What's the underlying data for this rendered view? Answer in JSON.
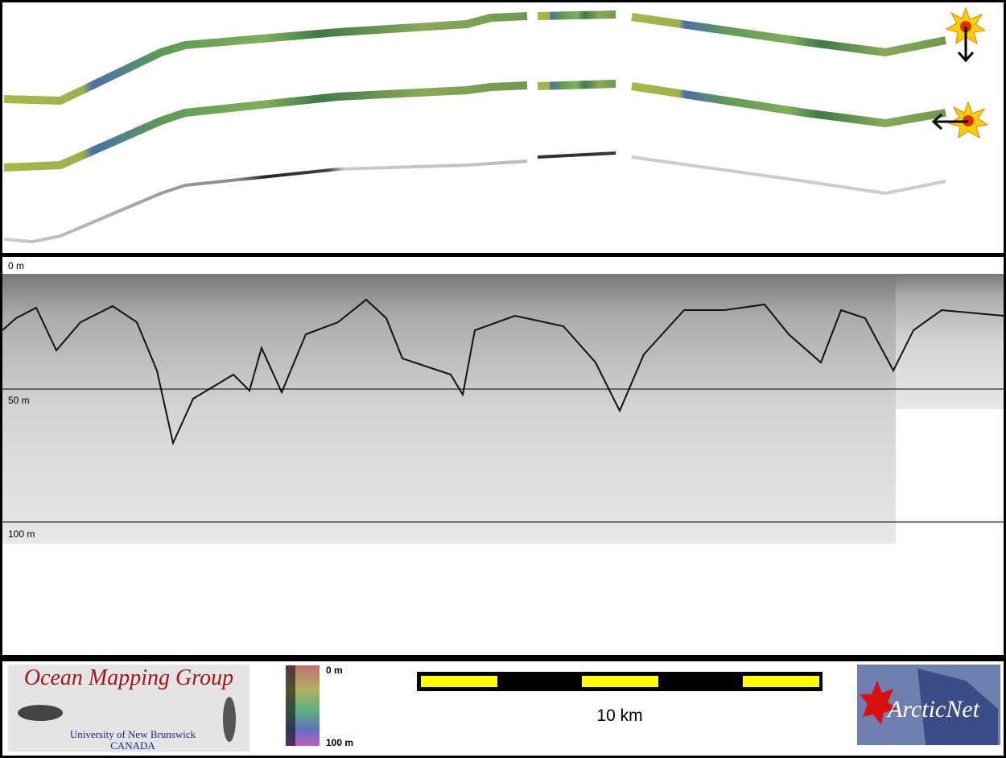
{
  "depth_axis": {
    "labels": [
      "0 m",
      "50 m",
      "100 m"
    ]
  },
  "logo": {
    "title": "Ocean Mapping Group",
    "subtitle": "University of New Brunswick",
    "country": "CANADA"
  },
  "colorbar": {
    "top": "0 m",
    "bottom": "100 m"
  },
  "scale_bar": {
    "label": "10 km"
  },
  "partner_logo": {
    "text": "ArcticNet"
  }
}
